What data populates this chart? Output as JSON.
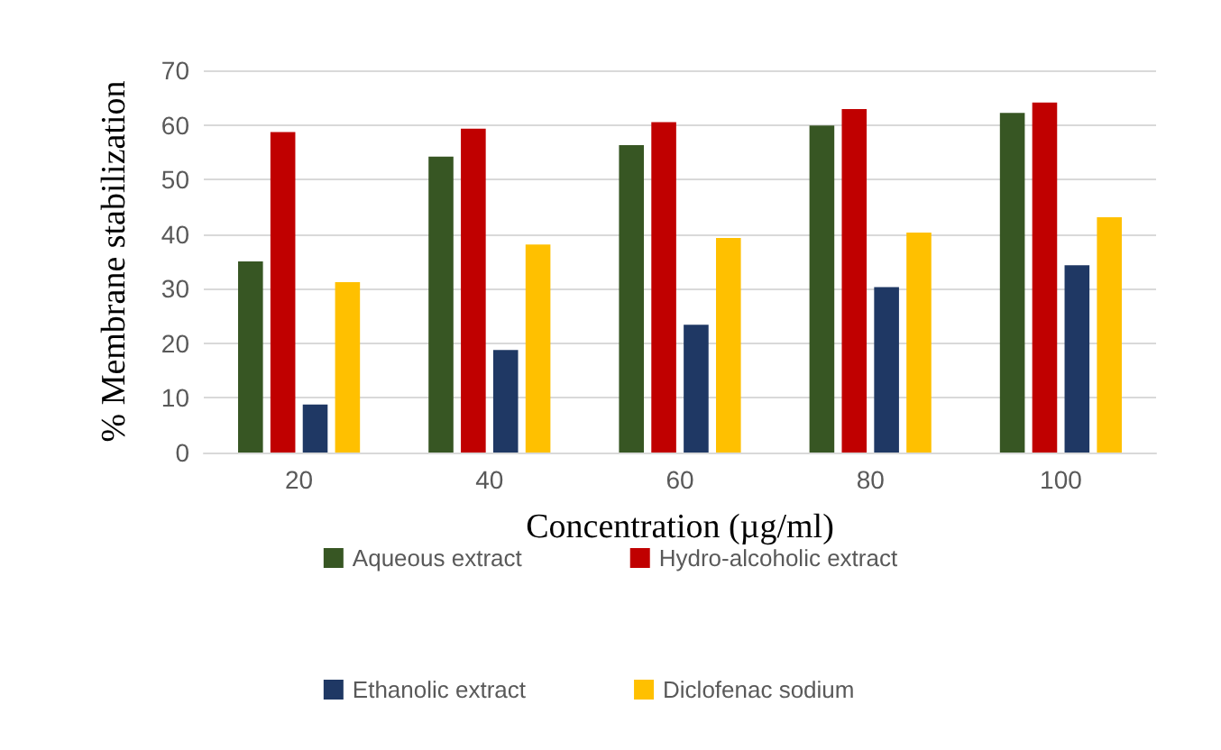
{
  "chart_data": {
    "type": "bar",
    "xlabel": "Concentration (µg/ml)",
    "ylabel": "% Membrane stabilization",
    "categories": [
      "20",
      "40",
      "60",
      "80",
      "100"
    ],
    "series": [
      {
        "name": "Aqueous extract",
        "color": "#375623",
        "values": [
          35,
          54.2,
          56.3,
          59.9,
          62.2
        ]
      },
      {
        "name": "Hydro-alcoholic extract",
        "color": "#c00000",
        "values": [
          58.7,
          59.3,
          60.5,
          62.9,
          64.1
        ]
      },
      {
        "name": "Ethanolic extract",
        "color": "#1f3864",
        "values": [
          8.8,
          18.8,
          23.4,
          30.3,
          34.3
        ]
      },
      {
        "name": "Diclofenac sodium",
        "color": "#ffc000",
        "values": [
          31.2,
          38.1,
          39.3,
          40.3,
          43.1
        ]
      }
    ],
    "ylim": [
      0,
      70
    ],
    "yticks": [
      0,
      10,
      20,
      30,
      40,
      50,
      60,
      70
    ],
    "grid": "y",
    "legend": "bottom"
  }
}
